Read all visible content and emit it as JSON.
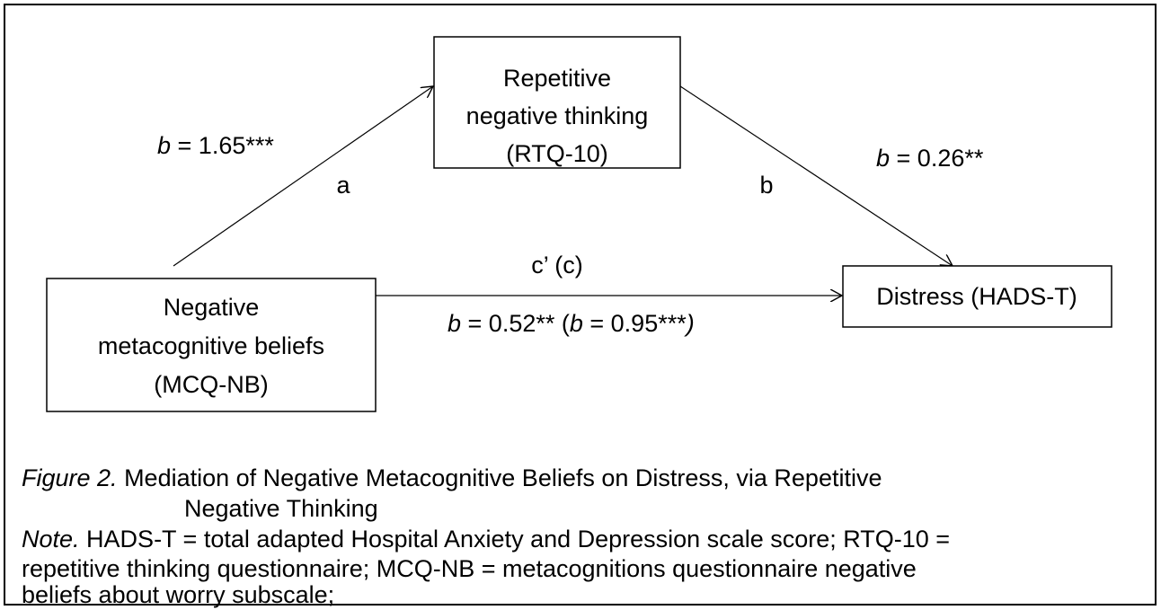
{
  "nodes": [
    {
      "lines": [
        "Repetitive",
        "negative thinking",
        "(RTQ-10)"
      ]
    },
    {
      "lines": [
        "Negative",
        "metacognitive beliefs",
        "(MCQ-NB)"
      ]
    },
    {
      "lines": [
        "Distress (HADS-T)"
      ]
    }
  ],
  "edges": {
    "a": {
      "name": "a",
      "coef": [
        "b",
        " = 1.65***"
      ]
    },
    "b": {
      "name": "b",
      "coef": [
        "b",
        " = 0.26**"
      ]
    },
    "c": {
      "name": "c’ (c)",
      "coef": [
        "b",
        " = 0.52** (",
        "b",
        " = 0.95***",
        ")"
      ]
    }
  },
  "caption": {
    "figure": [
      "Figure 2.",
      " Mediation of Negative Metacognitive Beliefs on Distress, via Repetitive",
      "Negative Thinking"
    ],
    "note": [
      "Note.",
      " HADS-T = total adapted Hospital Anxiety and Depression scale score; RTQ-10 =",
      "repetitive thinking questionnaire; MCQ-NB = metacognitions questionnaire negative",
      "beliefs about worry subscale;"
    ]
  }
}
